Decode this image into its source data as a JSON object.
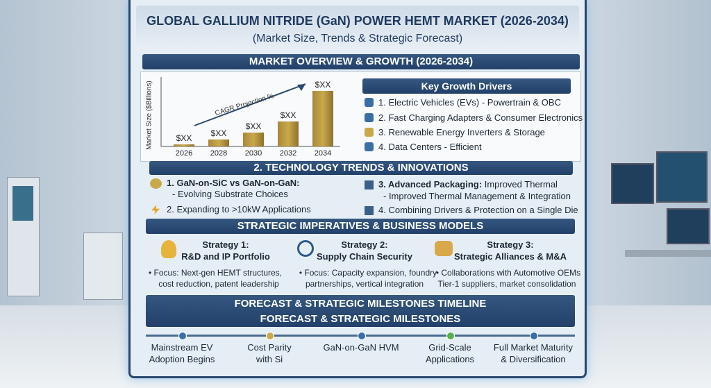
{
  "header": {
    "title": "GLOBAL GALLIUM NITRIDE (GaN) POWER HEMT MARKET (2026-2034)",
    "subtitle": "(Market Size, Trends & Strategic Forecast)"
  },
  "overview": {
    "heading": "MARKET OVERVIEW & GROWTH (2026-2034)"
  },
  "chart_data": {
    "type": "bar",
    "y_label": "Market Size ($Billions)",
    "annotation": "CAGR Projection %",
    "categories": [
      "2026",
      "2028",
      "2030",
      "2032",
      "2034"
    ],
    "values": [
      3,
      10,
      20,
      36,
      80
    ],
    "value_labels": [
      "$XX",
      "$XX",
      "$XX",
      "$XX",
      "$XX"
    ],
    "color": "#c9a94a",
    "ylim": [
      0,
      100
    ]
  },
  "drivers": {
    "heading": "Key Growth Drivers",
    "items": [
      "1. Electric Vehicles (EVs) - Powertrain & OBC",
      "2. Fast Charging Adapters & Consumer Electronics",
      "3. Renewable Energy Inverters & Storage",
      "4. Data Centers - Efficient"
    ]
  },
  "technology": {
    "heading": "2. TECHNOLOGY TRENDS & INNOVATIONS",
    "items": [
      {
        "label": "1. GaN-on-SiC vs GaN-on-GaN:",
        "detail": "- Evolving Substrate Choices"
      },
      {
        "label": "2. Expanding to >10kW Applications"
      },
      {
        "label": "3. Advanced Packaging:",
        "label_rest": "Improved Thermal",
        "detail": "- Improved Thermal Management & Integration"
      },
      {
        "label": "4. Combining Drivers & Protection on a Single Die"
      }
    ]
  },
  "strategies": {
    "heading": "STRATEGIC IMPERATIVES & BUSINESS MODELS",
    "items": [
      {
        "title": "Strategy 1:",
        "subtitle": "R&D and IP Portfolio",
        "lines": [
          "• Focus: Next-gen HEMT structures,",
          "cost reduction, patent leadership"
        ]
      },
      {
        "title": "Strategy 2:",
        "subtitle": "Supply Chain Security",
        "lines": [
          "• Focus: Capacity expansion, foundry",
          "partnerships, vertical integration"
        ]
      },
      {
        "title": "Strategy 3:",
        "subtitle": "Strategic Alliances & M&A",
        "lines": [
          "• Collaborations with Automotive OEMs",
          "Tier-1 suppliers, market consolidation"
        ]
      }
    ]
  },
  "timeline": {
    "heading": [
      "FORECAST & STRATEGIC MILESTONES TIMELINE",
      "FORECAST & STRATEGIC MILESTONES"
    ],
    "milestones": [
      [
        "Mainstream EV",
        "Adoption Begins"
      ],
      [
        "Cost Parity",
        "with Si"
      ],
      [
        "GaN-on-GaN HVM"
      ],
      [
        "Grid-Scale",
        "Applications"
      ],
      [
        "Full Market Maturity",
        "& Diversification"
      ]
    ]
  }
}
